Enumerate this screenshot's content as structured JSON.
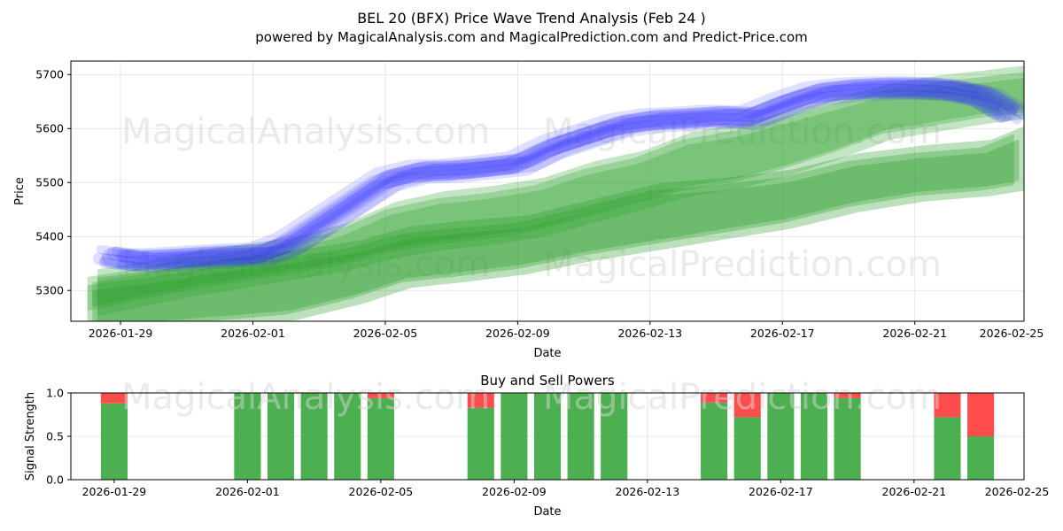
{
  "header": {
    "title": "BEL 20 (BFX) Price Wave Trend Analysis (Feb 24 )",
    "subtitle": "powered by MagicalAnalysis.com and MagicalPrediction.com and Predict-Price.com"
  },
  "watermarks": [
    "MagicalAnalysis.com",
    "MagicalPrediction.com"
  ],
  "colors": {
    "blue": "#3333ff",
    "green": "#2ca02c",
    "buy": "#4caf50",
    "sell": "#ff4d4d",
    "grid": "#e0e0e0"
  },
  "chart_data": [
    {
      "type": "area",
      "title": "",
      "xlabel": "Date",
      "ylabel": "Price",
      "xlim": [
        -1.5,
        27.3
      ],
      "ylim": [
        5243,
        5725
      ],
      "grid": true,
      "x_ticks": [
        {
          "pos": 0,
          "label": "2026-01-29"
        },
        {
          "pos": 4,
          "label": "2026-02-01"
        },
        {
          "pos": 8,
          "label": "2026-02-05"
        },
        {
          "pos": 12,
          "label": "2026-02-09"
        },
        {
          "pos": 16,
          "label": "2026-02-13"
        },
        {
          "pos": 20,
          "label": "2026-02-17"
        },
        {
          "pos": 24,
          "label": "2026-02-21"
        },
        {
          "pos": 28,
          "label": "2026-02-25"
        }
      ],
      "y_ticks": [
        5300,
        5400,
        5500,
        5600,
        5700
      ],
      "series": [
        {
          "name": "blue-wave",
          "kind": "line-band",
          "x": [
            -0.3,
            0.5,
            1.5,
            2.5,
            3.5,
            4.2,
            5.0,
            6.0,
            7.0,
            8.0,
            9.0,
            10.0,
            11.0,
            12.0,
            13.0,
            14.0,
            15.0,
            16.0,
            17.0,
            18.0,
            19.0,
            20.0,
            21.0,
            22.0,
            23.0,
            24.0,
            25.0,
            26.0,
            26.8
          ],
          "y": [
            5362,
            5355,
            5358,
            5362,
            5365,
            5367,
            5385,
            5425,
            5465,
            5505,
            5520,
            5522,
            5528,
            5535,
            5565,
            5585,
            5605,
            5615,
            5618,
            5622,
            5620,
            5645,
            5665,
            5672,
            5675,
            5675,
            5672,
            5660,
            5630
          ]
        },
        {
          "name": "green-wave-upper",
          "kind": "band",
          "x": [
            -1.0,
            0.5,
            2.0,
            3.5,
            5.0,
            6.5,
            8.0,
            9.5,
            11.0,
            12.5,
            14.0,
            15.5,
            17.0,
            18.5,
            20.0,
            21.5,
            23.0,
            24.5,
            26.0,
            27.3
          ],
          "upper": [
            5325,
            5340,
            5360,
            5372,
            5385,
            5410,
            5450,
            5470,
            5480,
            5495,
            5525,
            5545,
            5580,
            5595,
            5620,
            5645,
            5670,
            5685,
            5695,
            5705
          ],
          "lower": [
            5262,
            5282,
            5300,
            5315,
            5330,
            5345,
            5370,
            5385,
            5395,
            5410,
            5435,
            5460,
            5485,
            5500,
            5525,
            5555,
            5590,
            5605,
            5620,
            5630
          ]
        },
        {
          "name": "green-wave-lower",
          "kind": "band",
          "x": [
            -1.0,
            1.0,
            3.0,
            5.0,
            7.0,
            8.5,
            10.0,
            12.0,
            14.0,
            16.0,
            18.0,
            20.0,
            22.0,
            24.0,
            26.0,
            27.0
          ],
          "upper": [
            5310,
            5325,
            5345,
            5360,
            5380,
            5405,
            5415,
            5425,
            5455,
            5485,
            5495,
            5510,
            5540,
            5555,
            5565,
            5590
          ],
          "lower": [
            5225,
            5235,
            5245,
            5255,
            5285,
            5315,
            5325,
            5340,
            5365,
            5385,
            5405,
            5425,
            5455,
            5475,
            5485,
            5495
          ]
        }
      ]
    },
    {
      "type": "bar",
      "title": "Buy and Sell Powers",
      "xlabel": "Date",
      "ylabel": "Signal Strength",
      "xlim": [
        -1.3,
        27.3
      ],
      "ylim": [
        0,
        1.0
      ],
      "grid": true,
      "x_ticks": [
        {
          "pos": 0,
          "label": "2026-01-29"
        },
        {
          "pos": 4,
          "label": "2026-02-01"
        },
        {
          "pos": 8,
          "label": "2026-02-05"
        },
        {
          "pos": 12,
          "label": "2026-02-09"
        },
        {
          "pos": 16,
          "label": "2026-02-13"
        },
        {
          "pos": 20,
          "label": "2026-02-17"
        },
        {
          "pos": 24,
          "label": "2026-02-21"
        },
        {
          "pos": 28,
          "label": "2026-02-25"
        }
      ],
      "y_ticks": [
        0.0,
        0.5,
        1.0
      ],
      "series": [
        {
          "name": "Buy",
          "values": [
            {
              "x": 0,
              "v": 0.88
            },
            {
              "x": 4,
              "v": 1.0
            },
            {
              "x": 5,
              "v": 1.0
            },
            {
              "x": 6,
              "v": 1.0
            },
            {
              "x": 7,
              "v": 1.0
            },
            {
              "x": 8,
              "v": 0.94
            },
            {
              "x": 11,
              "v": 0.83
            },
            {
              "x": 12,
              "v": 1.0
            },
            {
              "x": 13,
              "v": 1.0
            },
            {
              "x": 14,
              "v": 1.0
            },
            {
              "x": 15,
              "v": 1.0
            },
            {
              "x": 18,
              "v": 0.89
            },
            {
              "x": 19,
              "v": 0.72
            },
            {
              "x": 20,
              "v": 1.0
            },
            {
              "x": 21,
              "v": 1.0
            },
            {
              "x": 22,
              "v": 0.94
            },
            {
              "x": 25,
              "v": 0.72
            },
            {
              "x": 26,
              "v": 0.5
            }
          ]
        },
        {
          "name": "Sell",
          "values": [
            {
              "x": 0,
              "v": 0.12
            },
            {
              "x": 4,
              "v": 0.0
            },
            {
              "x": 5,
              "v": 0.0
            },
            {
              "x": 6,
              "v": 0.0
            },
            {
              "x": 7,
              "v": 0.0
            },
            {
              "x": 8,
              "v": 0.06
            },
            {
              "x": 11,
              "v": 0.17
            },
            {
              "x": 12,
              "v": 0.0
            },
            {
              "x": 13,
              "v": 0.0
            },
            {
              "x": 14,
              "v": 0.0
            },
            {
              "x": 15,
              "v": 0.0
            },
            {
              "x": 18,
              "v": 0.11
            },
            {
              "x": 19,
              "v": 0.28
            },
            {
              "x": 20,
              "v": 0.0
            },
            {
              "x": 21,
              "v": 0.0
            },
            {
              "x": 22,
              "v": 0.06
            },
            {
              "x": 25,
              "v": 0.28
            },
            {
              "x": 26,
              "v": 0.5
            }
          ]
        }
      ]
    }
  ]
}
